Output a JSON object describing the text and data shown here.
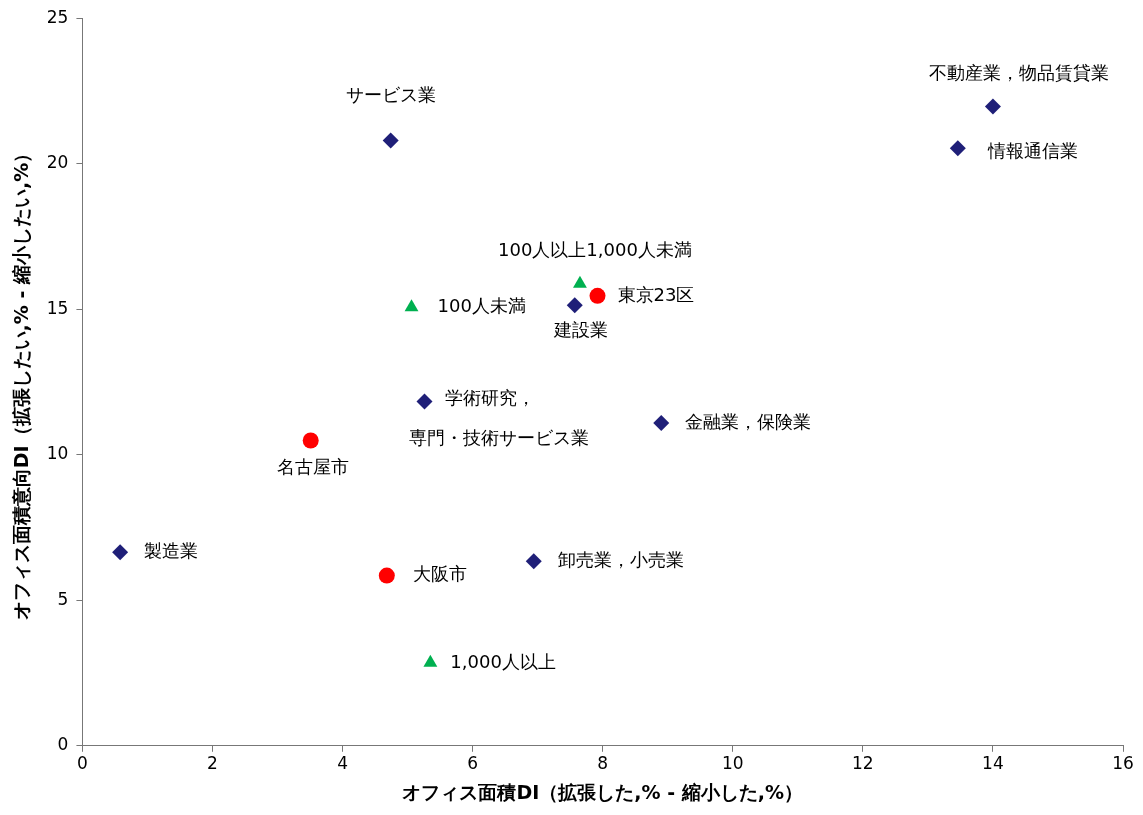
{
  "chart_data": {
    "type": "scatter",
    "xlabel": "オフィス面積DI（拡張した,% - 縮小した,%）",
    "ylabel": "オフィス面積意向DI（拡張したい,% - 縮小したい,%）",
    "xlim": [
      0,
      16
    ],
    "xticks": [
      0,
      2,
      4,
      6,
      8,
      10,
      12,
      14,
      16
    ],
    "ylim": [
      0,
      25
    ],
    "yticks": [
      0,
      5,
      10,
      15,
      20,
      25
    ],
    "grid": false,
    "legend": false,
    "series": [
      {
        "color": "#1f1f78",
        "marker": "diamond",
        "x": [
          0.58,
          4.74,
          5.26,
          7.57,
          6.94,
          8.9,
          13.46,
          14.0
        ],
        "values": [
          6.65,
          20.8,
          11.83,
          15.14,
          6.34,
          11.09,
          20.53,
          21.97
        ]
      },
      {
        "color": "#ff0000",
        "marker": "circle",
        "x": [
          3.51,
          4.68,
          7.92
        ],
        "values": [
          10.49,
          5.85,
          15.46
        ]
      },
      {
        "color": "#00b050",
        "marker": "triangle",
        "x": [
          5.06,
          7.65,
          5.35
        ],
        "values": [
          15.07,
          15.88,
          2.85
        ]
      }
    ],
    "annotations": [
      {
        "text": "製造業",
        "x": 0.58,
        "y": 6.65
      },
      {
        "text": "サービス業",
        "x": 4.74,
        "y": 20.8
      },
      {
        "text": "学術研究，",
        "x": 5.26,
        "y": 11.83
      },
      {
        "text": "専門・技術サービス業",
        "x": 5.26,
        "y": 11.83
      },
      {
        "text": "建設業",
        "x": 7.57,
        "y": 15.14
      },
      {
        "text": "卸売業，小売業",
        "x": 6.94,
        "y": 6.34
      },
      {
        "text": "金融業，保険業",
        "x": 8.9,
        "y": 11.09
      },
      {
        "text": "情報通信業",
        "x": 13.46,
        "y": 20.53
      },
      {
        "text": "不動産業，物品賃貸業",
        "x": 14.0,
        "y": 21.97
      },
      {
        "text": "名古屋市",
        "x": 3.51,
        "y": 10.49
      },
      {
        "text": "大阪市",
        "x": 4.68,
        "y": 5.85
      },
      {
        "text": "東京23区",
        "x": 7.92,
        "y": 15.46
      },
      {
        "text": "100人未満",
        "x": 5.06,
        "y": 15.07
      },
      {
        "text": "100人以上1,000人未満",
        "x": 7.65,
        "y": 15.88
      },
      {
        "text": "1,000人以上",
        "x": 5.35,
        "y": 2.85
      }
    ]
  }
}
